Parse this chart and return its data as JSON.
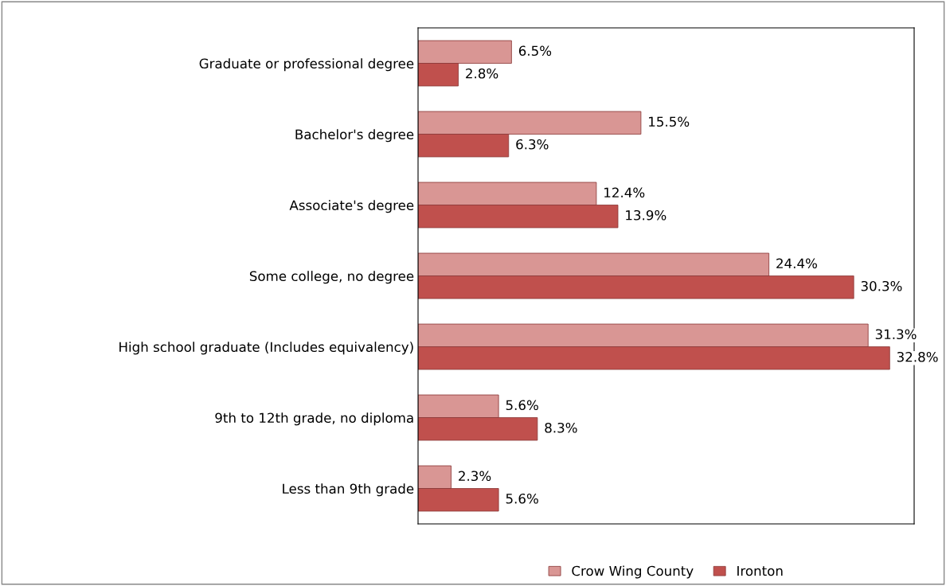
{
  "chart_data": {
    "type": "bar",
    "orientation": "horizontal",
    "categories": [
      "Graduate or professional degree",
      "Bachelor's degree",
      "Associate's degree",
      "Some college, no degree",
      "High school graduate (Includes equivalency)",
      "9th to 12th grade, no diploma",
      "Less than 9th grade"
    ],
    "series": [
      {
        "name": "Crow Wing County",
        "color": "#d99694",
        "values": [
          6.5,
          15.5,
          12.4,
          24.4,
          31.3,
          5.6,
          2.3
        ],
        "value_labels": [
          "6.5%",
          "15.5%",
          "12.4%",
          "24.4%",
          "31.3%",
          "5.6%",
          "2.3%"
        ]
      },
      {
        "name": "Ironton",
        "color": "#c0504d",
        "values": [
          2.8,
          6.3,
          13.9,
          30.3,
          32.8,
          8.3,
          5.6
        ],
        "value_labels": [
          "2.8%",
          "6.3%",
          "13.9%",
          "30.3%",
          "32.8%",
          "8.3%",
          "5.6%"
        ]
      }
    ],
    "xlim": [
      0,
      34.5
    ],
    "tick_labels": "y",
    "grid": false,
    "legend": "bottom"
  }
}
